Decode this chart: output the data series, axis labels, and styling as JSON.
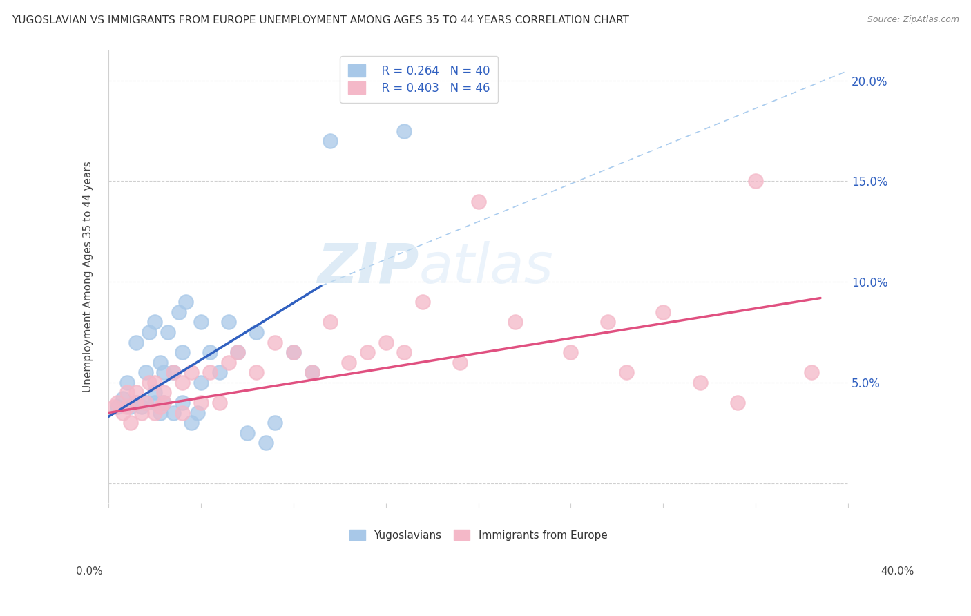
{
  "title": "YUGOSLAVIAN VS IMMIGRANTS FROM EUROPE UNEMPLOYMENT AMONG AGES 35 TO 44 YEARS CORRELATION CHART",
  "source": "Source: ZipAtlas.com",
  "ylabel": "Unemployment Among Ages 35 to 44 years",
  "xlim": [
    0.0,
    0.4
  ],
  "ylim": [
    -0.01,
    0.215
  ],
  "yticks": [
    0.0,
    0.05,
    0.1,
    0.15,
    0.2
  ],
  "ytick_labels": [
    "",
    "5.0%",
    "10.0%",
    "15.0%",
    "20.0%"
  ],
  "legend_blue_r": "R = 0.264",
  "legend_blue_n": "N = 40",
  "legend_pink_r": "R = 0.403",
  "legend_pink_n": "N = 46",
  "blue_color": "#a8c8e8",
  "pink_color": "#f4b8c8",
  "blue_line_color": "#3060c0",
  "pink_line_color": "#e05080",
  "blue_scatter_x": [
    0.005,
    0.008,
    0.01,
    0.012,
    0.015,
    0.015,
    0.018,
    0.02,
    0.02,
    0.022,
    0.025,
    0.025,
    0.025,
    0.028,
    0.028,
    0.03,
    0.03,
    0.032,
    0.035,
    0.035,
    0.038,
    0.04,
    0.04,
    0.042,
    0.045,
    0.048,
    0.05,
    0.05,
    0.055,
    0.06,
    0.065,
    0.07,
    0.075,
    0.08,
    0.085,
    0.09,
    0.1,
    0.11,
    0.12,
    0.16
  ],
  "blue_scatter_y": [
    0.038,
    0.042,
    0.05,
    0.038,
    0.07,
    0.04,
    0.038,
    0.055,
    0.04,
    0.075,
    0.04,
    0.045,
    0.08,
    0.06,
    0.035,
    0.04,
    0.055,
    0.075,
    0.035,
    0.055,
    0.085,
    0.065,
    0.04,
    0.09,
    0.03,
    0.035,
    0.05,
    0.08,
    0.065,
    0.055,
    0.08,
    0.065,
    0.025,
    0.075,
    0.02,
    0.03,
    0.065,
    0.055,
    0.17,
    0.175
  ],
  "pink_scatter_x": [
    0.003,
    0.005,
    0.008,
    0.01,
    0.01,
    0.012,
    0.015,
    0.015,
    0.018,
    0.02,
    0.022,
    0.025,
    0.025,
    0.028,
    0.03,
    0.03,
    0.035,
    0.04,
    0.04,
    0.045,
    0.05,
    0.055,
    0.06,
    0.065,
    0.07,
    0.08,
    0.09,
    0.1,
    0.11,
    0.12,
    0.13,
    0.14,
    0.15,
    0.16,
    0.17,
    0.19,
    0.2,
    0.22,
    0.25,
    0.27,
    0.28,
    0.3,
    0.32,
    0.34,
    0.35,
    0.38
  ],
  "pink_scatter_y": [
    0.038,
    0.04,
    0.035,
    0.038,
    0.045,
    0.03,
    0.04,
    0.045,
    0.035,
    0.04,
    0.05,
    0.035,
    0.05,
    0.038,
    0.04,
    0.045,
    0.055,
    0.035,
    0.05,
    0.055,
    0.04,
    0.055,
    0.04,
    0.06,
    0.065,
    0.055,
    0.07,
    0.065,
    0.055,
    0.08,
    0.06,
    0.065,
    0.07,
    0.065,
    0.09,
    0.06,
    0.14,
    0.08,
    0.065,
    0.08,
    0.055,
    0.085,
    0.05,
    0.04,
    0.15,
    0.055
  ],
  "blue_line_x": [
    0.0,
    0.115
  ],
  "blue_line_y": [
    0.033,
    0.098
  ],
  "pink_line_x": [
    0.0,
    0.385
  ],
  "pink_line_y": [
    0.035,
    0.092
  ],
  "dash_line_x": [
    0.115,
    0.4
  ],
  "dash_line_y": [
    0.098,
    0.205
  ],
  "watermark_zip": "ZIP",
  "watermark_atlas": "atlas",
  "background_color": "#ffffff",
  "grid_color": "#d0d0d0",
  "xtick_labels": [
    "0.0%",
    "",
    "",
    "",
    "",
    "",
    "",
    "",
    "40.0%"
  ],
  "bottom_legend_labels": [
    "Yugoslavians",
    "Immigrants from Europe"
  ]
}
